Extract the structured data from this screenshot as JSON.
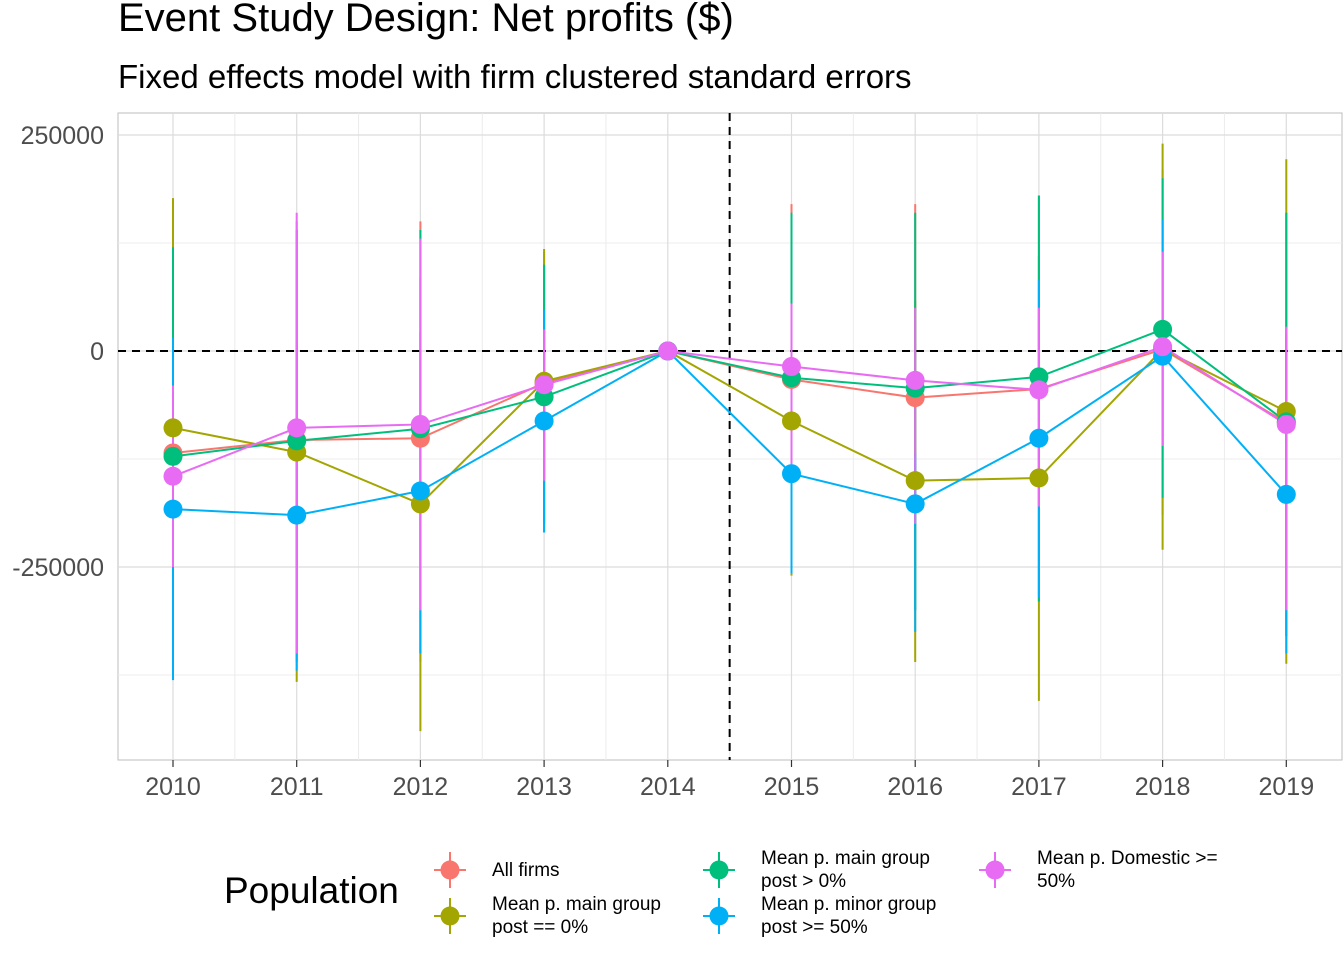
{
  "title": "Event Study Design: Net profits  ($)",
  "subtitle": "Fixed effects model with firm clustered standard errors",
  "chart_data": {
    "type": "line",
    "title": "Event Study Design: Net profits  ($)",
    "subtitle": "Fixed effects model with firm clustered standard errors",
    "xlabel": "",
    "ylabel": "",
    "categories": [
      "2010",
      "2011",
      "2012",
      "2013",
      "2014",
      "2015",
      "2016",
      "2017",
      "2018",
      "2019"
    ],
    "y_ticks": [
      250000,
      0,
      -250000
    ],
    "y_tick_labels": [
      "250000",
      "0",
      "-250000"
    ],
    "ylim": [
      -470000,
      275000
    ],
    "reference_lines": {
      "horizontal": 0,
      "vertical_between": [
        "2014",
        "2015"
      ]
    },
    "grid": true,
    "legend_title": "Population",
    "legend_position": "bottom",
    "series": [
      {
        "name": "All firms",
        "color": "#F8766D",
        "values": [
          -118000,
          -103000,
          -101000,
          -37000,
          0,
          -33000,
          -54000,
          -44000,
          2000,
          -83000
        ],
        "ci_low": [
          -370000,
          -350000,
          -360000,
          -200000,
          0,
          -240000,
          -300000,
          -290000,
          -190000,
          -330000
        ],
        "ci_high": [
          140000,
          140000,
          150000,
          115000,
          0,
          170000,
          170000,
          180000,
          210000,
          160000
        ]
      },
      {
        "name": "Mean p. main group\npost == 0%",
        "color": "#A3A500",
        "values": [
          -89000,
          -117000,
          -177000,
          -35000,
          0,
          -81000,
          -150000,
          -147000,
          2000,
          -70000
        ],
        "ci_low": [
          -360000,
          -383000,
          -440000,
          -210000,
          0,
          -260000,
          -360000,
          -405000,
          -230000,
          -362000
        ],
        "ci_high": [
          177000,
          150000,
          85000,
          118000,
          0,
          100000,
          58000,
          110000,
          240000,
          222000
        ]
      },
      {
        "name": "Mean p. main group\npost > 0%",
        "color": "#00BF7D",
        "values": [
          -122000,
          -104000,
          -90000,
          -53000,
          0,
          -31000,
          -43000,
          -30000,
          25000,
          -82000
        ],
        "ci_low": [
          -360000,
          -360000,
          -350000,
          -200000,
          0,
          -220000,
          -300000,
          -290000,
          -170000,
          -330000
        ],
        "ci_high": [
          120000,
          140000,
          140000,
          100000,
          0,
          160000,
          160000,
          180000,
          200000,
          160000
        ]
      },
      {
        "name": "Mean p. minor group\npost >= 50%",
        "color": "#00B0F6",
        "values": [
          -183000,
          -190000,
          -162000,
          -81000,
          0,
          -142000,
          -177000,
          -101000,
          -6000,
          -166000
        ],
        "ci_low": [
          -381000,
          -370000,
          -350000,
          -210000,
          0,
          -257000,
          -325000,
          -285000,
          -110000,
          -350000
        ],
        "ci_high": [
          15000,
          10000,
          22000,
          48000,
          0,
          50000,
          -118000,
          82000,
          152000,
          20000
        ]
      },
      {
        "name": "Mean p. Domestic >=\n50%",
        "color": "#E76BF3",
        "values": [
          -145000,
          -89000,
          -85000,
          -39000,
          0,
          -18000,
          -34000,
          -45000,
          5000,
          -85000
        ],
        "ci_low": [
          -250000,
          -350000,
          -300000,
          -150000,
          0,
          -150000,
          -200000,
          -180000,
          -110000,
          -300000
        ],
        "ci_high": [
          -40000,
          160000,
          130000,
          25000,
          0,
          55000,
          50000,
          50000,
          115000,
          28000
        ]
      }
    ]
  },
  "legend": {
    "title": "Population",
    "items": [
      {
        "label": "All firms",
        "color": "#F8766D"
      },
      {
        "label": "Mean p. main group\npost == 0%",
        "color": "#A3A500"
      },
      {
        "label": "Mean p. main group\npost > 0%",
        "color": "#00BF7D"
      },
      {
        "label": "Mean p. minor group\npost >= 50%",
        "color": "#00B0F6"
      },
      {
        "label": "Mean p. Domestic >=\n50%",
        "color": "#E76BF3"
      }
    ]
  }
}
